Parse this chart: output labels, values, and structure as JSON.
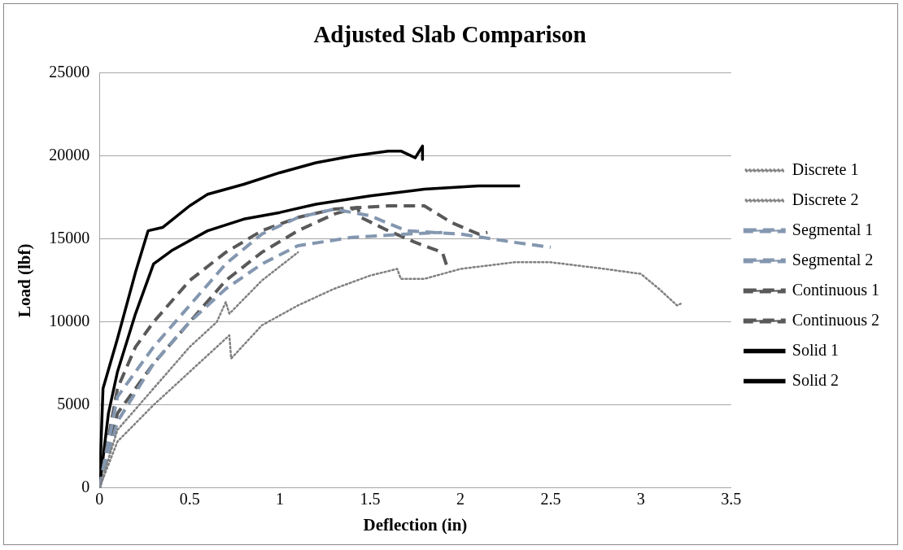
{
  "chart_data": {
    "type": "line",
    "title": "Adjusted Slab Comparison",
    "xlabel": "Deflection (in)",
    "ylabel": "Load (lbf)",
    "xlim": [
      0,
      3.5
    ],
    "xticks": [
      0,
      0.5,
      1,
      1.5,
      2,
      2.5,
      3,
      3.5
    ],
    "ylim": [
      0,
      25000
    ],
    "yticks": [
      0,
      5000,
      10000,
      15000,
      20000,
      25000
    ],
    "grid": "y",
    "legend": "right",
    "marker": "none",
    "series": [
      {
        "name": "Discrete 1",
        "color": "#808080",
        "line_style": "dotted",
        "x": [
          0,
          0.1,
          0.3,
          0.5,
          0.65,
          0.7,
          0.72,
          0.9,
          1.1
        ],
        "values": [
          0,
          3500,
          6000,
          8500,
          10000,
          11200,
          10500,
          12500,
          14200
        ]
      },
      {
        "name": "Discrete 2",
        "color": "#808080",
        "line_style": "dotted",
        "x": [
          0,
          0.1,
          0.3,
          0.5,
          0.7,
          0.72,
          0.73,
          0.9,
          1.1,
          1.3,
          1.5,
          1.65,
          1.67,
          1.8,
          2.0,
          2.3,
          2.5,
          2.8,
          3.0,
          3.1,
          3.2,
          3.22
        ],
        "values": [
          0,
          2800,
          5000,
          7000,
          9000,
          9200,
          7800,
          9800,
          11000,
          12000,
          12800,
          13200,
          12600,
          12600,
          13200,
          13600,
          13600,
          13200,
          12900,
          12000,
          11000,
          11100
        ]
      },
      {
        "name": "Segmental 1",
        "color": "#8497b0",
        "line_style": "dashed",
        "x": [
          0,
          0.1,
          0.3,
          0.5,
          0.7,
          0.9,
          1.1,
          1.3,
          1.5,
          1.7,
          2.0,
          2.3,
          2.5
        ],
        "values": [
          0,
          5500,
          8500,
          11000,
          13500,
          15300,
          16300,
          16800,
          16400,
          15500,
          15300,
          14800,
          14500
        ]
      },
      {
        "name": "Segmental 2",
        "color": "#8497b0",
        "line_style": "dashed",
        "x": [
          0,
          0.1,
          0.3,
          0.5,
          0.7,
          0.9,
          1.1,
          1.4,
          1.7,
          1.9
        ],
        "values": [
          0,
          4000,
          7500,
          10000,
          12000,
          13500,
          14600,
          15100,
          15300,
          15400
        ]
      },
      {
        "name": "Continuous 1",
        "color": "#595959",
        "line_style": "dashed",
        "x": [
          0,
          0.1,
          0.2,
          0.3,
          0.5,
          0.7,
          0.9,
          1.1,
          1.3,
          1.6,
          1.8,
          1.95,
          2.1,
          2.15
        ],
        "values": [
          0,
          6000,
          8500,
          10000,
          12500,
          14200,
          15500,
          16300,
          16800,
          17000,
          17000,
          16000,
          15300,
          15400
        ]
      },
      {
        "name": "Continuous 2",
        "color": "#595959",
        "line_style": "dashed",
        "x": [
          0,
          0.1,
          0.3,
          0.5,
          0.7,
          0.9,
          1.1,
          1.3,
          1.43,
          1.45,
          1.6,
          1.75,
          1.9,
          1.93
        ],
        "values": [
          0,
          4500,
          7500,
          10000,
          12500,
          14200,
          15500,
          16500,
          16900,
          16300,
          15500,
          14800,
          14200,
          13200
        ]
      },
      {
        "name": "Solid 1",
        "color": "#000000",
        "line_style": "solid",
        "x": [
          0,
          0.02,
          0.1,
          0.2,
          0.27,
          0.35,
          0.5,
          0.6,
          0.8,
          1.0,
          1.2,
          1.4,
          1.6,
          1.67,
          1.75,
          1.79,
          1.79
        ],
        "values": [
          0,
          6000,
          9000,
          13000,
          15500,
          15700,
          17000,
          17700,
          18300,
          19000,
          19600,
          20000,
          20300,
          20300,
          19900,
          20600,
          19800
        ]
      },
      {
        "name": "Solid 2",
        "color": "#000000",
        "line_style": "solid",
        "x": [
          0,
          0.05,
          0.1,
          0.2,
          0.3,
          0.4,
          0.6,
          0.8,
          1.0,
          1.2,
          1.5,
          1.8,
          2.1,
          2.33
        ],
        "values": [
          0,
          4500,
          7000,
          10500,
          13500,
          14300,
          15500,
          16200,
          16600,
          17100,
          17600,
          18000,
          18200,
          18200
        ]
      }
    ]
  }
}
